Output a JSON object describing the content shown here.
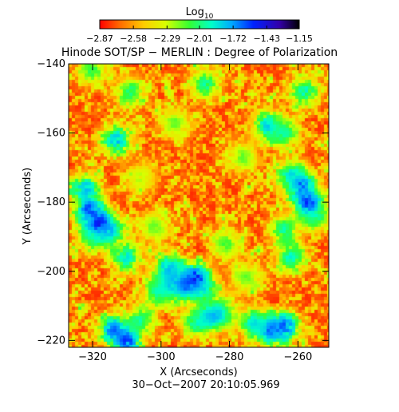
{
  "chart_data": {
    "type": "heatmap",
    "title": "Hinode SOT/SP − MERLIN : Degree of Polarization",
    "xlabel": "X (Arcseconds)",
    "ylabel": "Y (Arcseconds)",
    "xlim": [
      -327,
      -251
    ],
    "ylim": [
      -222,
      -140
    ],
    "x_ticks": [
      -320,
      -300,
      -280,
      -260
    ],
    "x_tick_labels": [
      "−320",
      "−300",
      "−280",
      "−260"
    ],
    "y_ticks": [
      -140,
      -160,
      -180,
      -200,
      -220
    ],
    "y_tick_labels": [
      "−140",
      "−160",
      "−180",
      "−200",
      "−220"
    ],
    "timestamp": "30−Oct−2007 20:10:05.969",
    "colorbar": {
      "label_main": "Log",
      "label_sub": "10",
      "range": [
        -2.87,
        -1.15
      ],
      "tick_values": [
        -2.87,
        -2.58,
        -2.29,
        -2.01,
        -1.72,
        -1.43,
        -1.15
      ],
      "tick_labels": [
        "−2.87",
        "−2.58",
        "−2.29",
        "−2.01",
        "−1.72",
        "−1.43",
        "−1.15"
      ],
      "colors": [
        "#ff0000",
        "#ff6a00",
        "#ffcc00",
        "#d8ff00",
        "#33ff33",
        "#00ffc8",
        "#00aaff",
        "#0022ff",
        "#3300aa",
        "#000000"
      ]
    },
    "background_level": -2.8,
    "regions": [
      {
        "x": -321,
        "y": -182,
        "level": -1.55
      },
      {
        "x": -318,
        "y": -186,
        "level": -1.45
      },
      {
        "x": -322,
        "y": -176,
        "level": -1.7
      },
      {
        "x": -320,
        "y": -190,
        "level": -1.9
      },
      {
        "x": -315,
        "y": -188,
        "level": -1.7
      },
      {
        "x": -290,
        "y": -202,
        "level": -1.45
      },
      {
        "x": -293,
        "y": -204,
        "level": -1.55
      },
      {
        "x": -288,
        "y": -205,
        "level": -1.8
      },
      {
        "x": -297,
        "y": -204,
        "level": -1.75
      },
      {
        "x": -298,
        "y": -199,
        "level": -1.7
      },
      {
        "x": -301,
        "y": -206,
        "level": -1.9
      },
      {
        "x": -259,
        "y": -175,
        "level": -1.6
      },
      {
        "x": -257,
        "y": -180,
        "level": -1.5
      },
      {
        "x": -262,
        "y": -172,
        "level": -1.8
      },
      {
        "x": -255,
        "y": -184,
        "level": -1.9
      },
      {
        "x": -264,
        "y": -188,
        "level": -1.9
      },
      {
        "x": -314,
        "y": -217,
        "level": -1.6
      },
      {
        "x": -310,
        "y": -220,
        "level": -1.5
      },
      {
        "x": -306,
        "y": -214,
        "level": -1.9
      },
      {
        "x": -268,
        "y": -217,
        "level": -1.6
      },
      {
        "x": -264,
        "y": -216,
        "level": -1.55
      },
      {
        "x": -273,
        "y": -215,
        "level": -1.8
      },
      {
        "x": -282,
        "y": -212,
        "level": -2.0
      },
      {
        "x": -290,
        "y": -215,
        "level": -1.9
      },
      {
        "x": -285,
        "y": -213,
        "level": -1.7
      },
      {
        "x": -313,
        "y": -162,
        "level": -1.7
      },
      {
        "x": -320,
        "y": -142,
        "level": -2.0
      },
      {
        "x": -309,
        "y": -148,
        "level": -1.95
      },
      {
        "x": -287,
        "y": -146,
        "level": -1.9
      },
      {
        "x": -269,
        "y": -158,
        "level": -1.75
      },
      {
        "x": -264,
        "y": -160,
        "level": -1.9
      },
      {
        "x": -258,
        "y": -148,
        "level": -1.85
      },
      {
        "x": -262,
        "y": -196,
        "level": -1.85
      },
      {
        "x": -281,
        "y": -192,
        "level": -2.05
      },
      {
        "x": -296,
        "y": -157,
        "level": -2.1
      },
      {
        "x": -302,
        "y": -187,
        "level": -2.1
      },
      {
        "x": -310,
        "y": -196,
        "level": -1.8
      },
      {
        "x": -276,
        "y": -167,
        "level": -2.1
      },
      {
        "x": -306,
        "y": -173,
        "level": -2.2
      },
      {
        "x": -275,
        "y": -202,
        "level": -2.1
      }
    ]
  }
}
